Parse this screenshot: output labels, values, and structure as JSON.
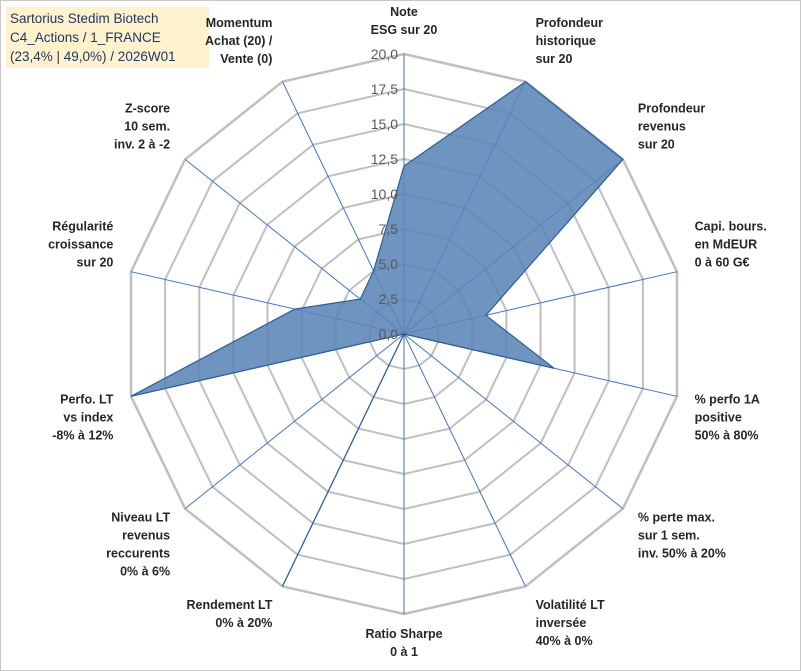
{
  "title_box": {
    "line1": "Sartorius Stedim Biotech",
    "line2": "C4_Actions / 1_FRANCE",
    "line3": "(23,4% | 49,0%) / 2026W01"
  },
  "chart_data": {
    "type": "radar",
    "title": "Sartorius Stedim Biotech",
    "rmin": 0,
    "rmax": 20,
    "tick_labels": [
      "0,0",
      "2,5",
      "5,0",
      "7,5",
      "10,0",
      "12,5",
      "15,0",
      "17,5",
      "20,0"
    ],
    "axes": [
      {
        "label": [
          "Note",
          "ESG sur 20"
        ],
        "value": 12.0
      },
      {
        "label": [
          "Profondeur",
          "historique",
          "sur 20"
        ],
        "value": 20.0
      },
      {
        "label": [
          "Profondeur",
          "revenus",
          "sur 20"
        ],
        "value": 20.0
      },
      {
        "label": [
          "Capi. bours.",
          "en MdEUR",
          "0 à 60 G€"
        ],
        "value": 6.0
      },
      {
        "label": [
          "% perfo 1A",
          "positive",
          "50% à 80%"
        ],
        "value": 11.0
      },
      {
        "label": [
          "% perte max.",
          "sur 1 sem.",
          "inv. 50% à 20%"
        ],
        "value": 0.0
      },
      {
        "label": [
          "Volatilité LT",
          "inversée",
          "40% à 0%"
        ],
        "value": 0.0
      },
      {
        "label": [
          "Ratio Sharpe",
          "0 à 1"
        ],
        "value": 0.0
      },
      {
        "label": [
          "Rendement LT",
          "0% à 20%"
        ],
        "value": 20.0
      },
      {
        "label": [
          "Niveau LT",
          "revenus",
          "reccurents",
          "0% à 6%"
        ],
        "value": 0.0
      },
      {
        "label": [
          "Perfo. LT",
          "vs index",
          "-8% à 12%"
        ],
        "value": 20.0
      },
      {
        "label": [
          "Régularité",
          "croissance",
          "sur 20"
        ],
        "value": 8.0
      },
      {
        "label": [
          "Z-score",
          "10 sem.",
          "inv. 2 à -2"
        ],
        "value": 4.0
      },
      {
        "label": [
          "Momentum",
          "Achat (20) /",
          "Vente (0)"
        ],
        "value": 5.0
      }
    ],
    "colors": {
      "fill": "#5b85b6",
      "stroke": "#2e5d96",
      "grid": "#bfbfbf",
      "spoke": "#4472c4"
    }
  }
}
